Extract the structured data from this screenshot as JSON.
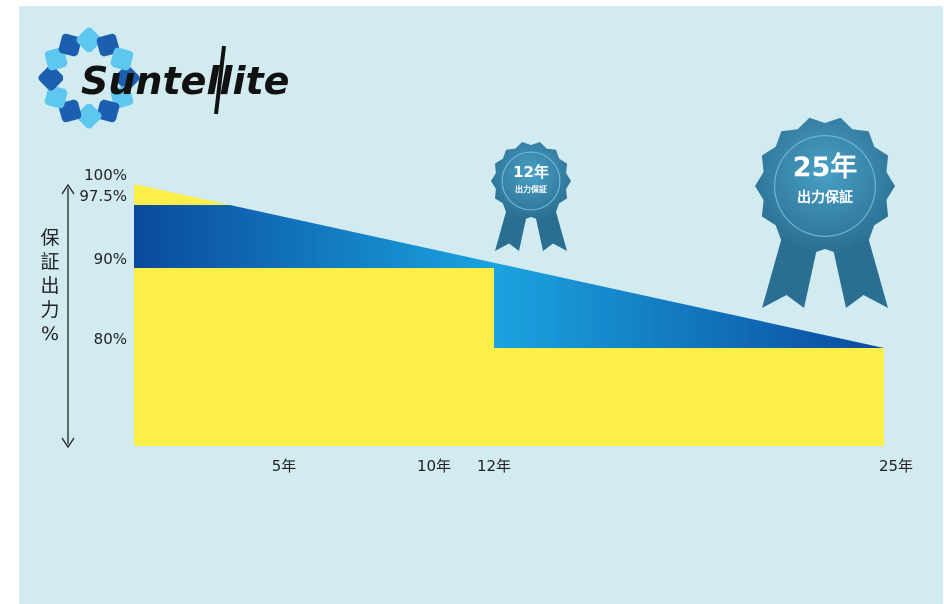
{
  "colors": {
    "background": "#d2ebf1",
    "yellow": "#fdee4a",
    "yellow_light": "#fff3a0",
    "blue_dark": "#0a4a9e",
    "blue_light": "#1ba3e0",
    "medal": "#3c8bb0",
    "medal_dark": "#2a6f91",
    "logo_blue": "#1c5fb0",
    "logo_light": "#5ec7ef"
  },
  "logo": {
    "text": "Suntellite",
    "icon": "sun-gear-icon"
  },
  "badges": [
    {
      "line1": "12年",
      "line2": "出力保証",
      "icon": "ribbon-medal-icon"
    },
    {
      "line1": "25年",
      "line2": "出力保証",
      "icon": "ribbon-medal-icon"
    }
  ],
  "chart_data": {
    "type": "area",
    "title": "",
    "ylabel": "保証出力%",
    "y_ticks": [
      "100%",
      "97.5%",
      "90%",
      "80%"
    ],
    "x_ticks": [
      "5年",
      "10年",
      "12年",
      "25年"
    ],
    "x_tick_values": [
      5,
      10,
      12,
      25
    ],
    "xlim": [
      0,
      25
    ],
    "series": [
      {
        "type": "linear_output_line",
        "x": [
          0,
          25
        ],
        "y": [
          100,
          80
        ]
      },
      {
        "type": "guaranteed_steps",
        "x": [
          0,
          12,
          12,
          25
        ],
        "y": [
          90,
          90,
          80,
          80
        ]
      },
      {
        "type": "initial_step",
        "x": [
          0,
          3.2
        ],
        "y": [
          97.5,
          97.5
        ]
      }
    ]
  }
}
